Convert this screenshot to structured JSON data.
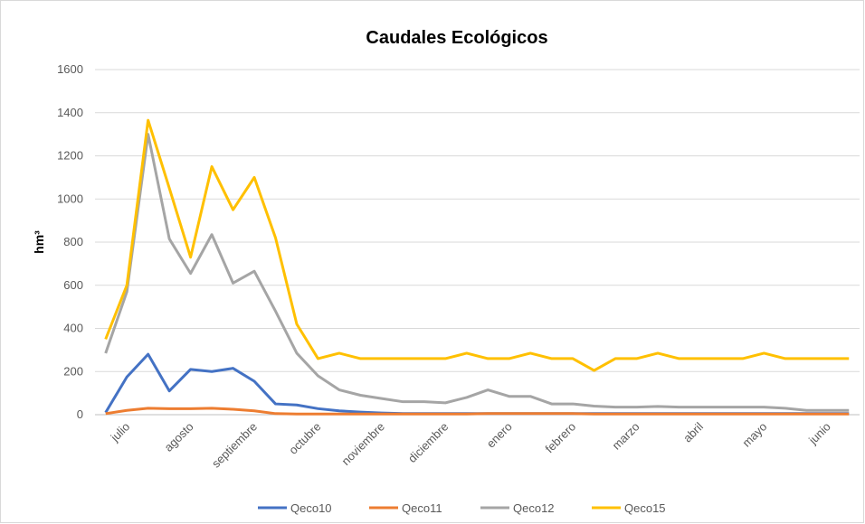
{
  "chart_data": {
    "type": "line",
    "title": "Caudales Ecológicos",
    "y_label": "hm³",
    "categories": [
      null,
      "julio",
      null,
      null,
      "agosto",
      null,
      null,
      "septiembre",
      null,
      null,
      "octubre",
      null,
      null,
      "noviembre",
      null,
      null,
      "diciembre",
      null,
      null,
      "enero",
      null,
      null,
      "febrero",
      null,
      null,
      "marzo",
      null,
      null,
      "abril",
      null,
      null,
      "mayo",
      null,
      null,
      "junio",
      null
    ],
    "series": [
      {
        "name": "Qeco10",
        "color": "#4472c4",
        "values": [
          10,
          175,
          280,
          110,
          210,
          200,
          215,
          155,
          50,
          45,
          28,
          18,
          12,
          8,
          5,
          5,
          5,
          5,
          5,
          5,
          5,
          5,
          5,
          5,
          5,
          5,
          5,
          5,
          5,
          5,
          5,
          5,
          5,
          5,
          5,
          5
        ]
      },
      {
        "name": "Qeco11",
        "color": "#ed7d31",
        "values": [
          5,
          20,
          30,
          28,
          28,
          30,
          25,
          18,
          5,
          3,
          3,
          3,
          3,
          3,
          3,
          3,
          3,
          3,
          5,
          5,
          5,
          5,
          5,
          3,
          3,
          3,
          3,
          3,
          3,
          3,
          3,
          3,
          3,
          3,
          3,
          3
        ]
      },
      {
        "name": "Qeco12",
        "color": "#a5a5a5",
        "values": [
          285,
          570,
          1300,
          815,
          655,
          835,
          610,
          665,
          480,
          285,
          180,
          115,
          90,
          75,
          60,
          60,
          55,
          80,
          115,
          85,
          85,
          50,
          50,
          40,
          35,
          35,
          38,
          35,
          35,
          35,
          35,
          35,
          30,
          20,
          20,
          20
        ]
      },
      {
        "name": "Qeco15",
        "color": "#ffc000",
        "values": [
          350,
          600,
          1365,
          1050,
          730,
          1150,
          950,
          1100,
          820,
          420,
          260,
          285,
          260,
          260,
          260,
          260,
          260,
          285,
          260,
          260,
          285,
          260,
          260,
          205,
          260,
          260,
          285,
          260,
          260,
          260,
          260,
          285,
          260,
          260,
          260,
          260
        ]
      }
    ],
    "ylim": [
      0,
      1600
    ],
    "yticks": [
      0,
      200,
      400,
      600,
      800,
      1000,
      1200,
      1400,
      1600
    ],
    "grid": true,
    "legend": "bottom"
  }
}
